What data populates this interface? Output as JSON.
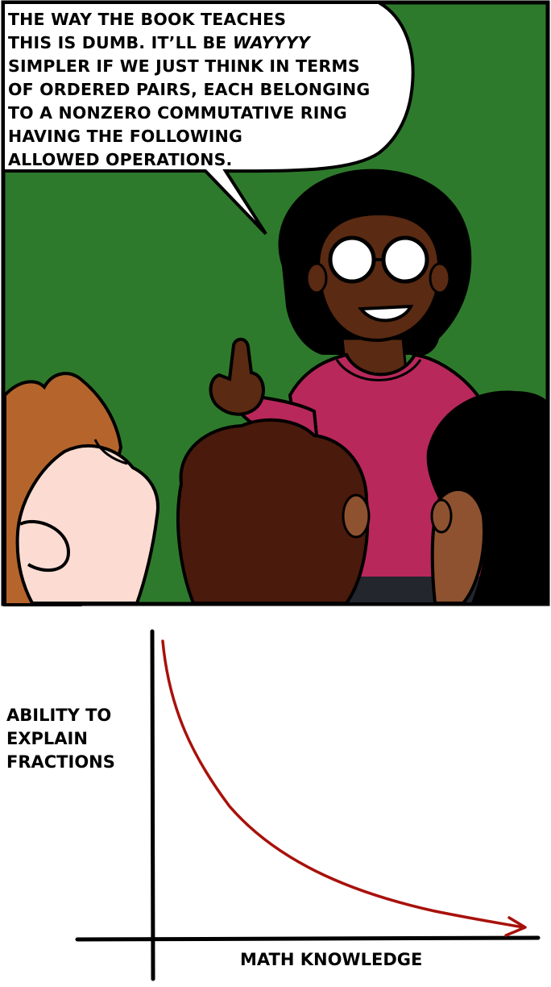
{
  "panel": {
    "speech": {
      "lines": [
        "THE WAY THE BOOK TEACHES",
        "THIS IS DUMB. IT'LL BE ",
        "SIMPLER IF WE JUST THINK IN TERMS",
        "OF ORDERED PAIRS, EACH BELONGING",
        "TO A NONZERO COMMUTATIVE RING",
        "HAVING THE FOLLOWING",
        "ALLOWED OPERATIONS."
      ],
      "emphasis": "WAYYYY"
    },
    "colors": {
      "background": "#2e7a2c",
      "shirt": "#b9285a",
      "skin_teacher": "#5a2a12",
      "hair_orange": "#b5652c",
      "hair_brown": "#4a1a0c",
      "skin_pale": "#fcdcd2",
      "skin_tan": "#8e5230"
    }
  },
  "chart_data": {
    "type": "line",
    "title": "",
    "xlabel": "MATH KNOWLEDGE",
    "ylabel_lines": [
      "ABILITY TO",
      "EXPLAIN",
      "FRACTIONS"
    ],
    "series": [
      {
        "color": "#a8110b",
        "shape": "decreasing-convex",
        "arrow": "end"
      }
    ]
  }
}
